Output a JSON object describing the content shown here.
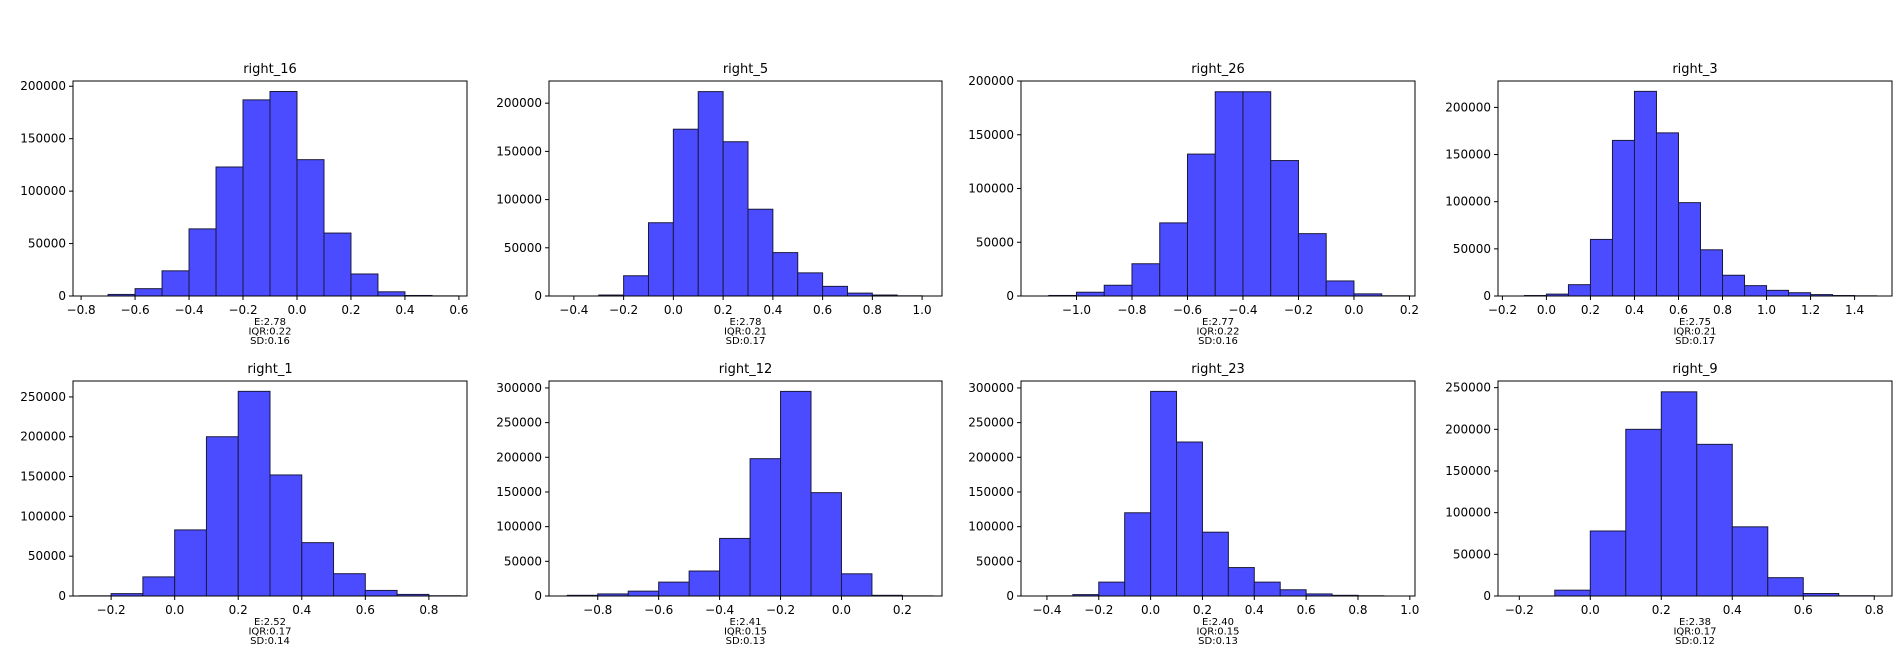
{
  "figure": {
    "bar_color": "#4b4bff",
    "edge_color": "#1a1a3d"
  },
  "chart_data": [
    {
      "type": "bar",
      "title": "right_16",
      "bins": [
        [
          -0.8,
          -0.7,
          0
        ],
        [
          -0.7,
          -0.6,
          1500
        ],
        [
          -0.6,
          -0.5,
          7000
        ],
        [
          -0.5,
          -0.4,
          24000
        ],
        [
          -0.4,
          -0.3,
          64000
        ],
        [
          -0.3,
          -0.2,
          123000
        ],
        [
          -0.2,
          -0.1,
          187000
        ],
        [
          -0.1,
          0.0,
          195000
        ],
        [
          0.0,
          0.1,
          130000
        ],
        [
          0.1,
          0.2,
          60000
        ],
        [
          0.2,
          0.3,
          21000
        ],
        [
          0.3,
          0.4,
          4000
        ],
        [
          0.4,
          0.5,
          500
        ],
        [
          0.5,
          0.6,
          100
        ]
      ],
      "xlim": [
        -0.83,
        0.63
      ],
      "ylim": [
        0,
        205000
      ],
      "xticks": [
        -0.8,
        -0.6,
        -0.4,
        -0.2,
        0.0,
        0.2,
        0.4,
        0.6
      ],
      "xtick_labels": [
        "−0.8",
        "−0.6",
        "−0.4",
        "−0.2",
        "0.0",
        "0.2",
        "0.4",
        "0.6"
      ],
      "yticks": [
        0,
        50000,
        100000,
        150000,
        200000
      ],
      "ytick_labels": [
        "0",
        "50000",
        "100000",
        "150000",
        "200000"
      ],
      "stats": [
        "E:2.78",
        "IQR:0.22",
        "SD:0.16"
      ]
    },
    {
      "type": "bar",
      "title": "right_5",
      "bins": [
        [
          -0.4,
          -0.3,
          0
        ],
        [
          -0.3,
          -0.2,
          1000
        ],
        [
          -0.2,
          -0.1,
          21000
        ],
        [
          -0.1,
          0.0,
          76000
        ],
        [
          0.0,
          0.1,
          173000
        ],
        [
          0.1,
          0.2,
          212000
        ],
        [
          0.2,
          0.3,
          160000
        ],
        [
          0.3,
          0.4,
          90000
        ],
        [
          0.4,
          0.5,
          45000
        ],
        [
          0.5,
          0.6,
          24000
        ],
        [
          0.6,
          0.7,
          10000
        ],
        [
          0.7,
          0.8,
          3000
        ],
        [
          0.8,
          0.9,
          1000
        ],
        [
          0.9,
          1.0,
          200
        ]
      ],
      "xlim": [
        -0.5,
        1.08
      ],
      "ylim": [
        0,
        223000
      ],
      "xticks": [
        -0.4,
        -0.2,
        0.0,
        0.2,
        0.4,
        0.6,
        0.8,
        1.0
      ],
      "xtick_labels": [
        "−0.4",
        "−0.2",
        "0.0",
        "0.2",
        "0.4",
        "0.6",
        "0.8",
        "1.0"
      ],
      "yticks": [
        0,
        50000,
        100000,
        150000,
        200000
      ],
      "ytick_labels": [
        "0",
        "50000",
        "100000",
        "150000",
        "200000"
      ],
      "stats": [
        "E:2.78",
        "IQR:0.21",
        "SD:0.17"
      ]
    },
    {
      "type": "bar",
      "title": "right_26",
      "bins": [
        [
          -1.1,
          -1.0,
          500
        ],
        [
          -1.0,
          -0.9,
          3500
        ],
        [
          -0.9,
          -0.8,
          10000
        ],
        [
          -0.8,
          -0.7,
          30000
        ],
        [
          -0.7,
          -0.6,
          68000
        ],
        [
          -0.6,
          -0.5,
          132000
        ],
        [
          -0.5,
          -0.4,
          190000
        ],
        [
          -0.4,
          -0.3,
          190000
        ],
        [
          -0.3,
          -0.2,
          126000
        ],
        [
          -0.2,
          -0.1,
          58000
        ],
        [
          -0.1,
          0.0,
          14000
        ],
        [
          0.0,
          0.1,
          2000
        ],
        [
          0.1,
          0.2,
          200
        ]
      ],
      "xlim": [
        -1.2,
        0.22
      ],
      "ylim": [
        0,
        200000
      ],
      "xticks": [
        -1.0,
        -0.8,
        -0.6,
        -0.4,
        -0.2,
        0.0,
        0.2
      ],
      "xtick_labels": [
        "−1.0",
        "−0.8",
        "−0.6",
        "−0.4",
        "−0.2",
        "0.0",
        "0.2"
      ],
      "yticks": [
        0,
        50000,
        100000,
        150000,
        200000
      ],
      "ytick_labels": [
        "0",
        "50000",
        "100000",
        "150000",
        "200000"
      ],
      "stats": [
        "E:2.77",
        "IQR:0.22",
        "SD:0.16"
      ]
    },
    {
      "type": "bar",
      "title": "right_3",
      "bins": [
        [
          -0.1,
          0.0,
          500
        ],
        [
          0.0,
          0.1,
          2000
        ],
        [
          0.1,
          0.2,
          12000
        ],
        [
          0.2,
          0.3,
          60000
        ],
        [
          0.3,
          0.4,
          165000
        ],
        [
          0.4,
          0.5,
          217000
        ],
        [
          0.5,
          0.6,
          173000
        ],
        [
          0.6,
          0.7,
          99000
        ],
        [
          0.7,
          0.8,
          49000
        ],
        [
          0.8,
          0.9,
          22000
        ],
        [
          0.9,
          1.0,
          11000
        ],
        [
          1.0,
          1.1,
          6000
        ],
        [
          1.1,
          1.2,
          3500
        ],
        [
          1.2,
          1.3,
          1500
        ],
        [
          1.3,
          1.4,
          500
        ],
        [
          1.4,
          1.5,
          200
        ]
      ],
      "xlim": [
        -0.22,
        1.57
      ],
      "ylim": [
        0,
        228000
      ],
      "xticks": [
        -0.2,
        0.0,
        0.2,
        0.4,
        0.6,
        0.8,
        1.0,
        1.2,
        1.4
      ],
      "xtick_labels": [
        "−0.2",
        "0.0",
        "0.2",
        "0.4",
        "0.6",
        "0.8",
        "1.0",
        "1.2",
        "1.4"
      ],
      "yticks": [
        0,
        50000,
        100000,
        150000,
        200000
      ],
      "ytick_labels": [
        "0",
        "50000",
        "100000",
        "150000",
        "200000"
      ],
      "stats": [
        "E:2.75",
        "IQR:0.21",
        "SD:0.17"
      ]
    },
    {
      "type": "bar",
      "title": "right_1",
      "bins": [
        [
          -0.3,
          -0.2,
          200
        ],
        [
          -0.2,
          -0.1,
          3000
        ],
        [
          -0.1,
          0.0,
          24000
        ],
        [
          0.0,
          0.1,
          83000
        ],
        [
          0.1,
          0.2,
          200000
        ],
        [
          0.2,
          0.3,
          257000
        ],
        [
          0.3,
          0.4,
          152000
        ],
        [
          0.4,
          0.5,
          67000
        ],
        [
          0.5,
          0.6,
          28000
        ],
        [
          0.6,
          0.7,
          7000
        ],
        [
          0.7,
          0.8,
          2000
        ],
        [
          0.8,
          0.9,
          300
        ]
      ],
      "xlim": [
        -0.32,
        0.92
      ],
      "ylim": [
        0,
        270000
      ],
      "xticks": [
        -0.2,
        0.0,
        0.2,
        0.4,
        0.6,
        0.8
      ],
      "xtick_labels": [
        "−0.2",
        "0.0",
        "0.2",
        "0.4",
        "0.6",
        "0.8"
      ],
      "yticks": [
        0,
        50000,
        100000,
        150000,
        200000,
        250000
      ],
      "ytick_labels": [
        "0",
        "50000",
        "100000",
        "150000",
        "200000",
        "250000"
      ],
      "stats": [
        "E:2.52",
        "IQR:0.17",
        "SD:0.14"
      ]
    },
    {
      "type": "bar",
      "title": "right_12",
      "bins": [
        [
          -0.9,
          -0.8,
          1000
        ],
        [
          -0.8,
          -0.7,
          3000
        ],
        [
          -0.7,
          -0.6,
          7000
        ],
        [
          -0.6,
          -0.5,
          20000
        ],
        [
          -0.5,
          -0.4,
          36000
        ],
        [
          -0.4,
          -0.3,
          83000
        ],
        [
          -0.3,
          -0.2,
          198000
        ],
        [
          -0.2,
          -0.1,
          295000
        ],
        [
          -0.1,
          0.0,
          149000
        ],
        [
          0.0,
          0.1,
          32000
        ],
        [
          0.1,
          0.2,
          1000
        ],
        [
          0.2,
          0.3,
          200
        ]
      ],
      "xlim": [
        -0.96,
        0.33
      ],
      "ylim": [
        0,
        310000
      ],
      "xticks": [
        -0.8,
        -0.6,
        -0.4,
        -0.2,
        0.0,
        0.2
      ],
      "xtick_labels": [
        "−0.8",
        "−0.6",
        "−0.4",
        "−0.2",
        "0.0",
        "0.2"
      ],
      "yticks": [
        0,
        50000,
        100000,
        150000,
        200000,
        250000,
        300000
      ],
      "ytick_labels": [
        "0",
        "50000",
        "100000",
        "150000",
        "200000",
        "250000",
        "300000"
      ],
      "stats": [
        "E:2.41",
        "IQR:0.15",
        "SD:0.13"
      ]
    },
    {
      "type": "bar",
      "title": "right_23",
      "bins": [
        [
          -0.4,
          -0.3,
          200
        ],
        [
          -0.3,
          -0.2,
          2000
        ],
        [
          -0.2,
          -0.1,
          20000
        ],
        [
          -0.1,
          0.0,
          120000
        ],
        [
          0.0,
          0.1,
          295000
        ],
        [
          0.1,
          0.2,
          222000
        ],
        [
          0.2,
          0.3,
          92000
        ],
        [
          0.3,
          0.4,
          41000
        ],
        [
          0.4,
          0.5,
          20000
        ],
        [
          0.5,
          0.6,
          9000
        ],
        [
          0.6,
          0.7,
          3000
        ],
        [
          0.7,
          0.8,
          1000
        ],
        [
          0.8,
          0.9,
          300
        ]
      ],
      "xlim": [
        -0.5,
        1.02
      ],
      "ylim": [
        0,
        310000
      ],
      "xticks": [
        -0.4,
        -0.2,
        0.0,
        0.2,
        0.4,
        0.6,
        0.8,
        1.0
      ],
      "xtick_labels": [
        "−0.4",
        "−0.2",
        "0.0",
        "0.2",
        "0.4",
        "0.6",
        "0.8",
        "1.0"
      ],
      "yticks": [
        0,
        50000,
        100000,
        150000,
        200000,
        250000,
        300000
      ],
      "ytick_labels": [
        "0",
        "50000",
        "100000",
        "150000",
        "200000",
        "250000",
        "300000"
      ],
      "stats": [
        "E:2.40",
        "IQR:0.15",
        "SD:0.13"
      ]
    },
    {
      "type": "bar",
      "title": "right_9",
      "bins": [
        [
          -0.1,
          0.0,
          7000
        ],
        [
          0.0,
          0.1,
          78000
        ],
        [
          0.1,
          0.2,
          200000
        ],
        [
          0.2,
          0.3,
          245000
        ],
        [
          0.3,
          0.4,
          182000
        ],
        [
          0.4,
          0.5,
          83000
        ],
        [
          0.5,
          0.6,
          22000
        ],
        [
          0.6,
          0.7,
          3000
        ],
        [
          0.7,
          0.8,
          300
        ]
      ],
      "xlim": [
        -0.26,
        0.85
      ],
      "ylim": [
        0,
        258000
      ],
      "xticks": [
        -0.2,
        0.0,
        0.2,
        0.4,
        0.6,
        0.8
      ],
      "xtick_labels": [
        "−0.2",
        "0.0",
        "0.2",
        "0.4",
        "0.6",
        "0.8"
      ],
      "yticks": [
        0,
        50000,
        100000,
        150000,
        200000,
        250000
      ],
      "ytick_labels": [
        "0",
        "50000",
        "100000",
        "150000",
        "200000",
        "250000"
      ],
      "stats": [
        "E:2.38",
        "IQR:0.17",
        "SD:0.12"
      ]
    }
  ]
}
